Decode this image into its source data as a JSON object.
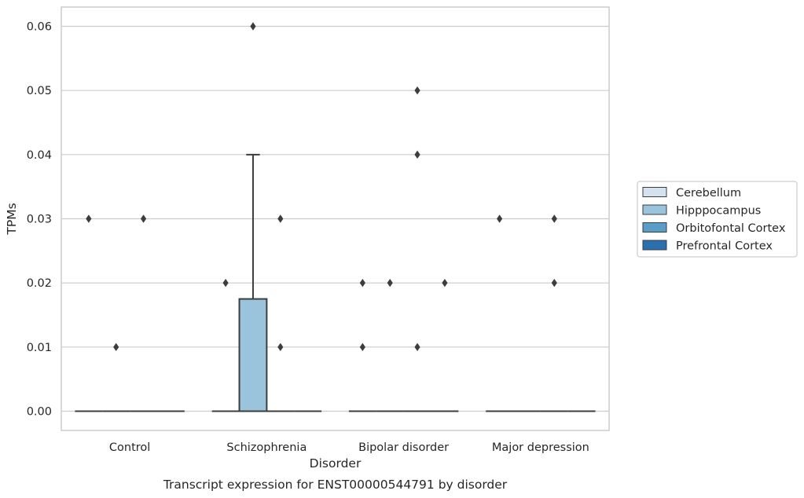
{
  "chart_data": {
    "type": "boxplot",
    "caption": "Transcript expression for ENST00000544791 by disorder",
    "xlabel": "Disorder",
    "ylabel": "TPMs",
    "ylim": [
      -0.003,
      0.063
    ],
    "yticks": [
      0.0,
      0.01,
      0.02,
      0.03,
      0.04,
      0.05,
      0.06
    ],
    "ytick_labels": [
      "0.00",
      "0.01",
      "0.02",
      "0.03",
      "0.04",
      "0.05",
      "0.06"
    ],
    "grid": "horizontal",
    "legend_position": "right",
    "categories": [
      "Control",
      "Schizophrenia",
      "Bipolar disorder",
      "Major depression"
    ],
    "series": [
      {
        "name": "Cerebellum",
        "color": "#d4e2ef",
        "boxes": [
          {
            "q1": 0,
            "median": 0,
            "q3": 0,
            "whisker_low": 0,
            "whisker_high": 0,
            "outliers": [
              0.03
            ]
          },
          {
            "q1": 0,
            "median": 0,
            "q3": 0,
            "whisker_low": 0,
            "whisker_high": 0,
            "outliers": [
              0.02
            ]
          },
          {
            "q1": 0,
            "median": 0,
            "q3": 0,
            "whisker_low": 0,
            "whisker_high": 0,
            "outliers": [
              0.01,
              0.02
            ]
          },
          {
            "q1": 0,
            "median": 0,
            "q3": 0,
            "whisker_low": 0,
            "whisker_high": 0,
            "outliers": [
              0.03
            ]
          }
        ]
      },
      {
        "name": "Hipppocampus",
        "color": "#9ac3dc",
        "boxes": [
          {
            "q1": 0,
            "median": 0,
            "q3": 0,
            "whisker_low": 0,
            "whisker_high": 0,
            "outliers": [
              0.01
            ]
          },
          {
            "q1": 0,
            "median": 0,
            "q3": 0.0175,
            "whisker_low": 0,
            "whisker_high": 0.04,
            "outliers": [
              0.06
            ]
          },
          {
            "q1": 0,
            "median": 0,
            "q3": 0,
            "whisker_low": 0,
            "whisker_high": 0,
            "outliers": [
              0.02
            ]
          },
          {
            "q1": 0,
            "median": 0,
            "q3": 0,
            "whisker_low": 0,
            "whisker_high": 0,
            "outliers": []
          }
        ]
      },
      {
        "name": "Orbitofontal Cortex",
        "color": "#5b9dc9",
        "boxes": [
          {
            "q1": 0,
            "median": 0,
            "q3": 0,
            "whisker_low": 0,
            "whisker_high": 0,
            "outliers": [
              0.03
            ]
          },
          {
            "q1": 0,
            "median": 0,
            "q3": 0,
            "whisker_low": 0,
            "whisker_high": 0,
            "outliers": [
              0.01,
              0.03
            ]
          },
          {
            "q1": 0,
            "median": 0,
            "q3": 0,
            "whisker_low": 0,
            "whisker_high": 0,
            "outliers": [
              0.01,
              0.04,
              0.05
            ]
          },
          {
            "q1": 0,
            "median": 0,
            "q3": 0,
            "whisker_low": 0,
            "whisker_high": 0,
            "outliers": [
              0.02,
              0.03
            ]
          }
        ]
      },
      {
        "name": "Prefrontal Cortex",
        "color": "#2a6fae",
        "boxes": [
          {
            "q1": 0,
            "median": 0,
            "q3": 0,
            "whisker_low": 0,
            "whisker_high": 0,
            "outliers": []
          },
          {
            "q1": 0,
            "median": 0,
            "q3": 0,
            "whisker_low": 0,
            "whisker_high": 0,
            "outliers": []
          },
          {
            "q1": 0,
            "median": 0,
            "q3": 0,
            "whisker_low": 0,
            "whisker_high": 0,
            "outliers": [
              0.02
            ]
          },
          {
            "q1": 0,
            "median": 0,
            "q3": 0,
            "whisker_low": 0,
            "whisker_high": 0,
            "outliers": []
          }
        ]
      }
    ]
  }
}
